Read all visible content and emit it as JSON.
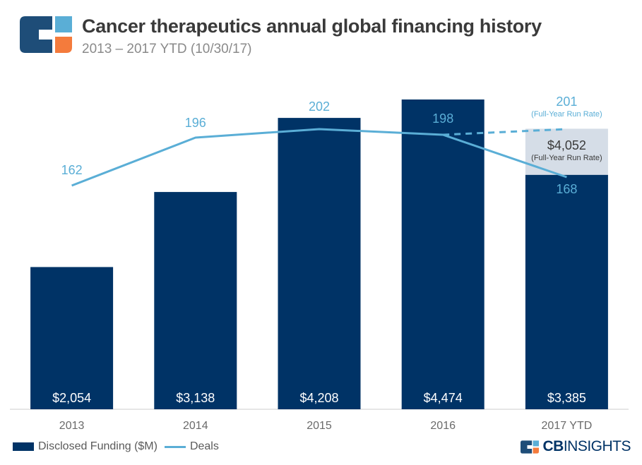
{
  "header": {
    "title": "Cancer therapeutics annual global financing history",
    "subtitle": "2013 – 2017 YTD (10/30/17)"
  },
  "colors": {
    "bar": "#003366",
    "line": "#5aaed6",
    "projection_box": "#d5dde7",
    "logo_blue": "#1e4d78",
    "logo_orange": "#f47b3c",
    "logo_light": "#5aaed6"
  },
  "chart_data": {
    "type": "bar",
    "categories": [
      "2013",
      "2014",
      "2015",
      "2016",
      "2017 YTD"
    ],
    "series": [
      {
        "name": "Disclosed Funding ($M)",
        "type": "bar",
        "values": [
          2054,
          3138,
          4208,
          4474,
          3385
        ],
        "labels": [
          "$2,054",
          "$3,138",
          "$4,208",
          "$4,474",
          "$3,385"
        ]
      },
      {
        "name": "Deals",
        "type": "line",
        "axis": "secondary",
        "values": [
          162,
          196,
          202,
          198,
          168
        ],
        "labels": [
          "162",
          "196",
          "202",
          "198",
          "168"
        ]
      }
    ],
    "projections": {
      "funding_run_rate": {
        "value": 4052,
        "label": "$4,052",
        "note": "(Full-Year Run Rate)"
      },
      "deals_run_rate": {
        "value": 201,
        "label": "201",
        "note": "(Full-Year Run Rate)"
      }
    },
    "ylim_funding": [
      0,
      4474
    ],
    "ylim_deals": [
      0,
      220
    ],
    "legend_position": "bottom-left",
    "grid": false
  },
  "legend": {
    "funding": "Disclosed Funding ($M)",
    "deals": "Deals"
  },
  "brand": {
    "cb": "CB",
    "insights": "INSIGHTS"
  }
}
